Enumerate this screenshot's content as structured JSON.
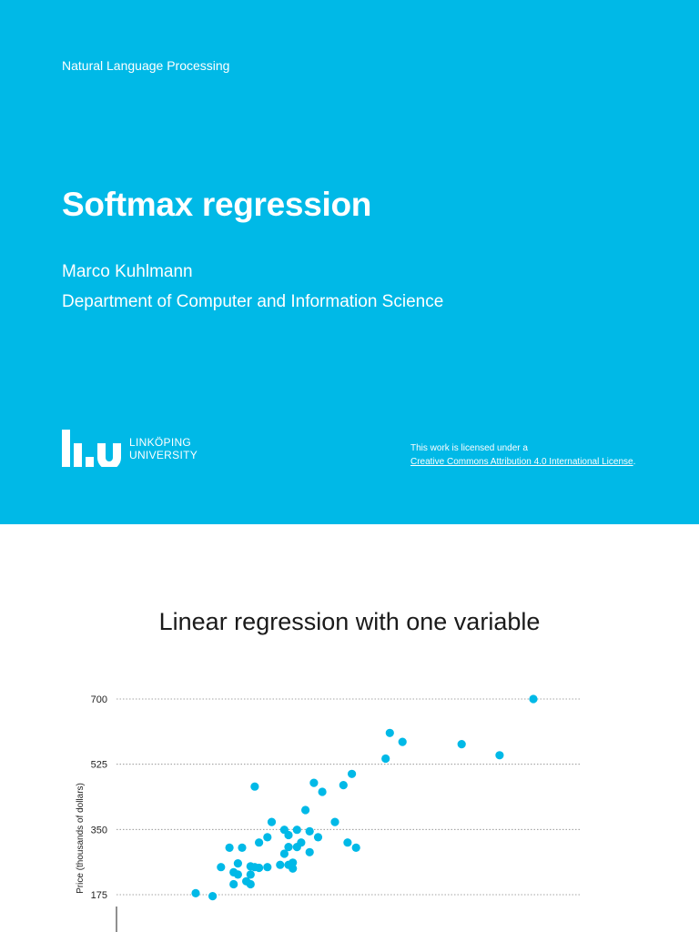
{
  "slide": {
    "course": "Natural Language Processing",
    "title": "Softmax regression",
    "author": "Marco Kuhlmann",
    "department": "Department of Computer and Information Science",
    "logo": {
      "line1": "LINKÖPING",
      "line2": "UNIVERSITY"
    },
    "license": {
      "line1": "This work is licensed under a",
      "link": "Creative Commons Attribution 4.0 International License",
      "suffix": "."
    }
  },
  "colors": {
    "background": "#00b9e7",
    "text": "#ffffff",
    "points": "#00b9e7"
  },
  "chart_data": {
    "type": "scatter",
    "title": "Linear regression with one variable",
    "xlabel": "",
    "ylabel": "Price (thousands of dollars)",
    "yticks": [
      175,
      350,
      525,
      700
    ],
    "ylim": [
      160,
      700
    ],
    "xlim": [
      0,
      100
    ],
    "grid": true,
    "points": [
      [
        20,
        179
      ],
      [
        24,
        171
      ],
      [
        26,
        249
      ],
      [
        28,
        301
      ],
      [
        29,
        235
      ],
      [
        29,
        203
      ],
      [
        30,
        229
      ],
      [
        30,
        259
      ],
      [
        31,
        301
      ],
      [
        32,
        211
      ],
      [
        33,
        229
      ],
      [
        33,
        203
      ],
      [
        33,
        251
      ],
      [
        34,
        465
      ],
      [
        34,
        249
      ],
      [
        35,
        247
      ],
      [
        35,
        315
      ],
      [
        37,
        249
      ],
      [
        37,
        329
      ],
      [
        38,
        370
      ],
      [
        40,
        255
      ],
      [
        41,
        285
      ],
      [
        41,
        349
      ],
      [
        42,
        303
      ],
      [
        42,
        255
      ],
      [
        42,
        335
      ],
      [
        43,
        245
      ],
      [
        43,
        261
      ],
      [
        44,
        303
      ],
      [
        44,
        349
      ],
      [
        45,
        315
      ],
      [
        46,
        402
      ],
      [
        47,
        345
      ],
      [
        47,
        289
      ],
      [
        48,
        475
      ],
      [
        49,
        329
      ],
      [
        50,
        451
      ],
      [
        53,
        370
      ],
      [
        55,
        469
      ],
      [
        56,
        315
      ],
      [
        57,
        499
      ],
      [
        58,
        301
      ],
      [
        65,
        540
      ],
      [
        66,
        609
      ],
      [
        69,
        585
      ],
      [
        83,
        579
      ],
      [
        92,
        549
      ],
      [
        100,
        700
      ]
    ]
  }
}
